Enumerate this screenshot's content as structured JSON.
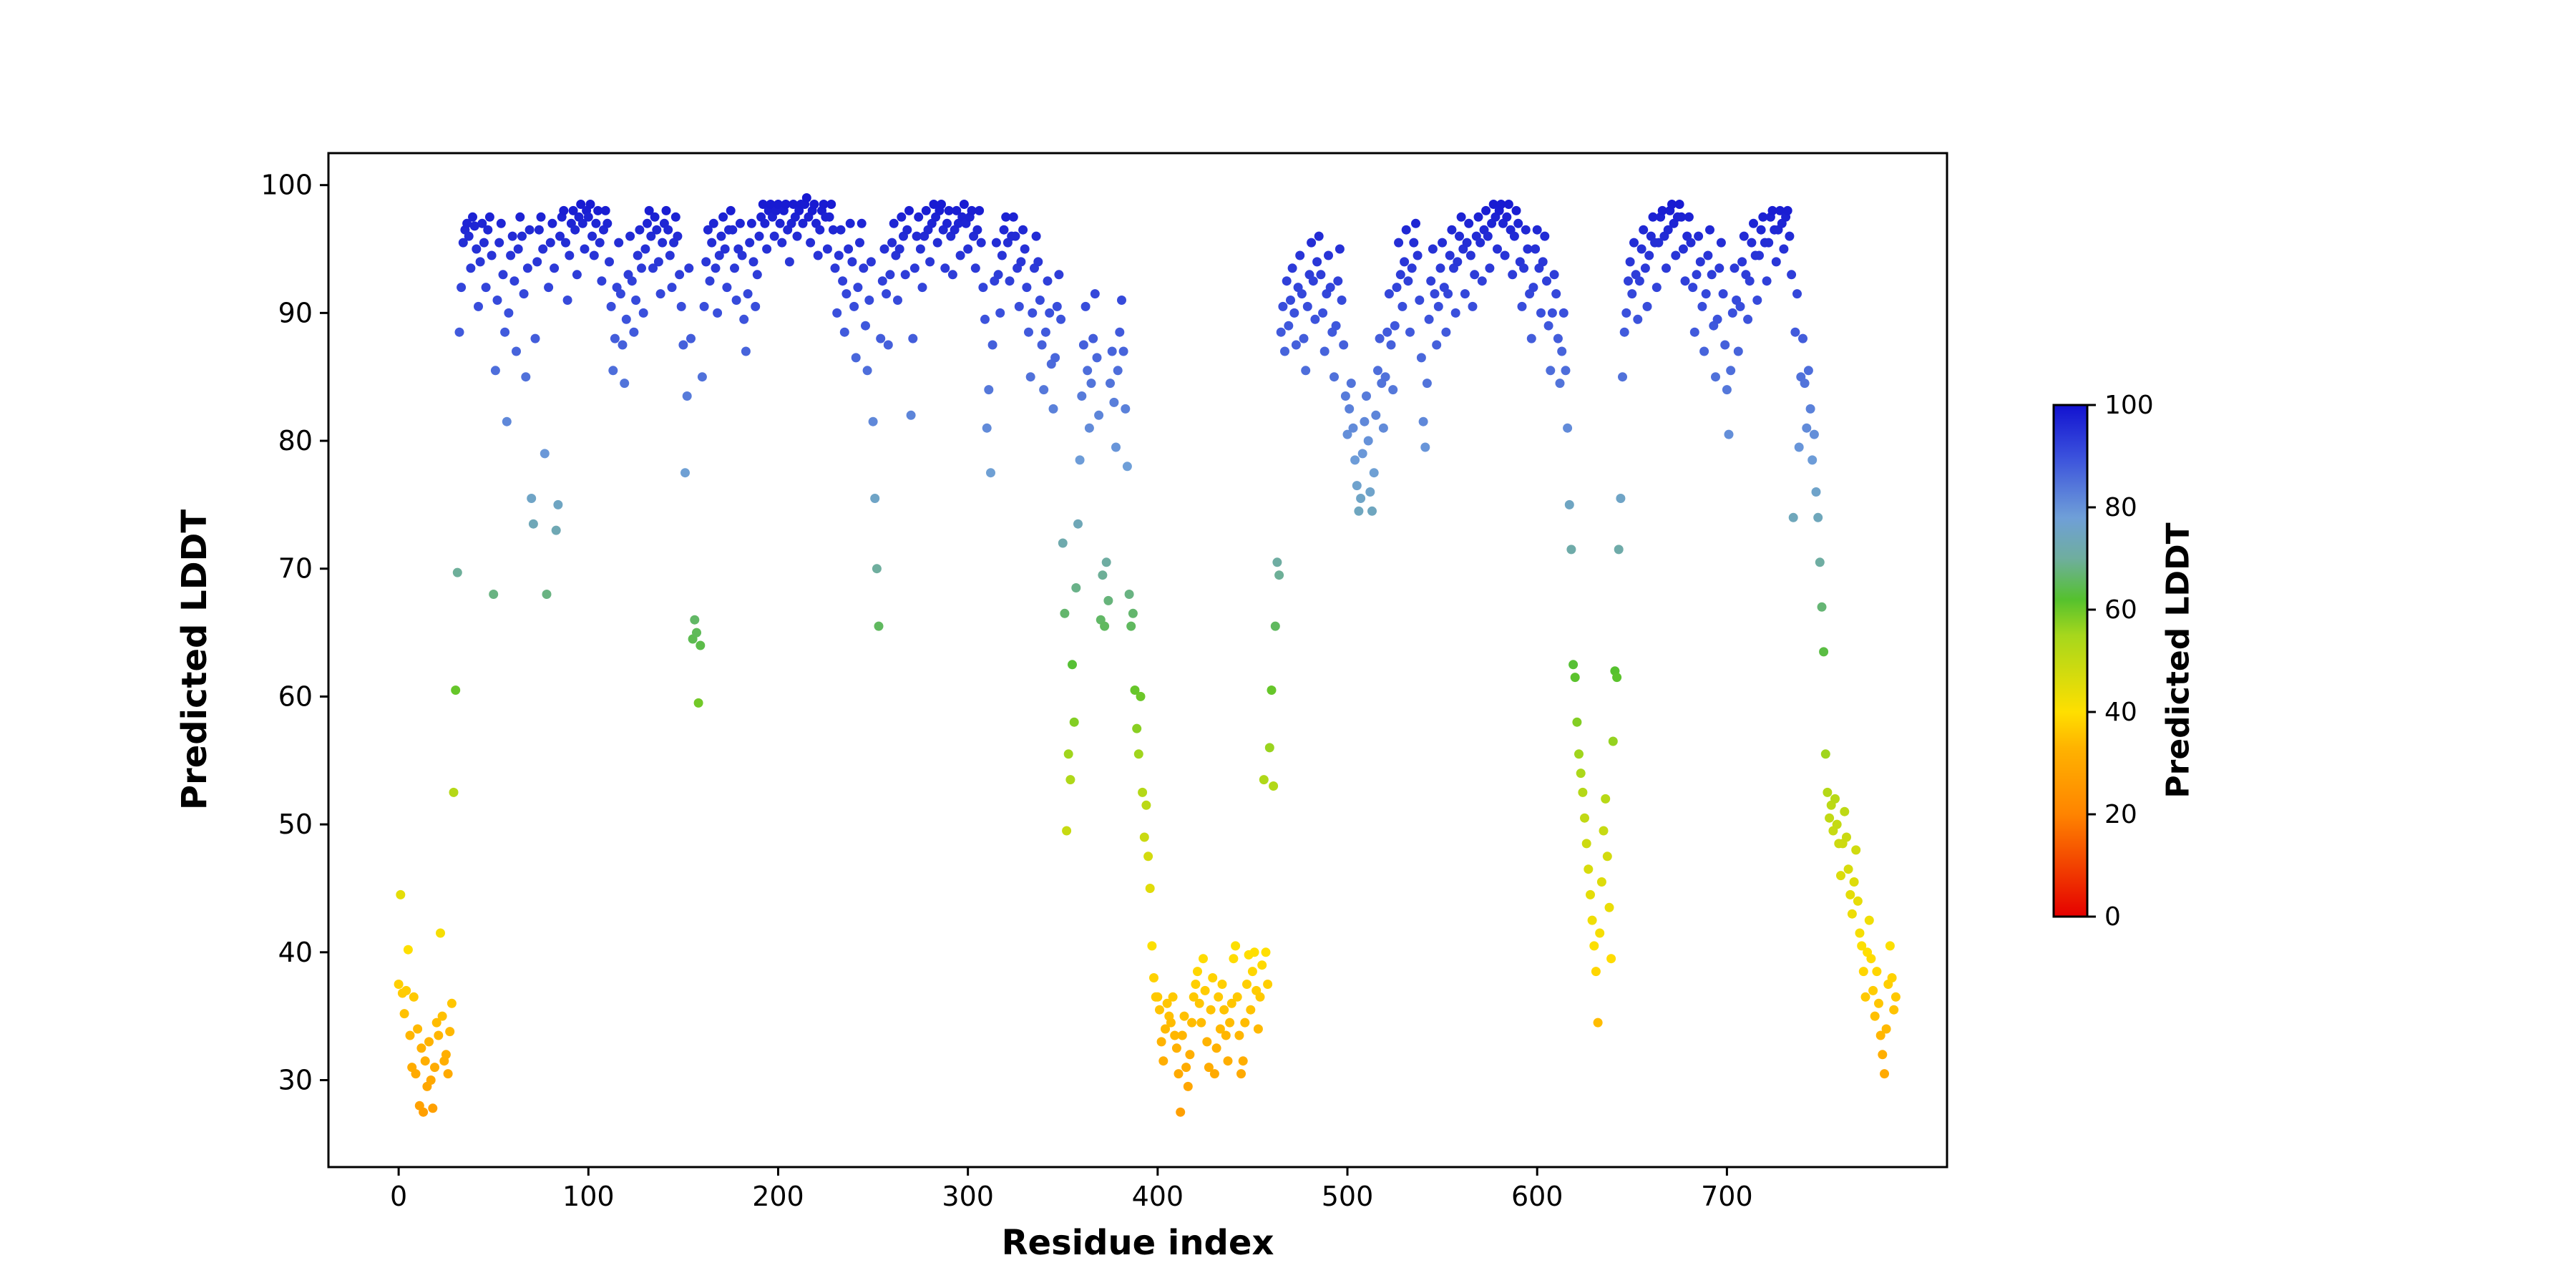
{
  "figure": {
    "background": "#ffffff",
    "axes": {
      "xlabel": "Residue index",
      "ylabel": "Predicted LDDT",
      "spine_color": "#000000",
      "tick_color": "#000000"
    },
    "colorbar": {
      "label": "Predicted LDDT",
      "ticks": [
        0,
        20,
        40,
        60,
        80,
        100
      ],
      "vmin": 0,
      "vmax": 100
    }
  },
  "chart_data": {
    "type": "scatter",
    "title": "",
    "xlabel": "Residue index",
    "ylabel": "Predicted LDDT",
    "xlim": [
      -37,
      816
    ],
    "ylim": [
      23.2,
      102.5
    ],
    "xticks": [
      0,
      100,
      200,
      300,
      400,
      500,
      600,
      700
    ],
    "yticks": [
      30,
      40,
      50,
      60,
      70,
      80,
      90,
      100
    ],
    "grid": false,
    "legend": false,
    "marker_size": 6.5,
    "color_by": "y",
    "color_vmin": 0,
    "color_vmax": 100,
    "colormap_stops": [
      [
        0.0,
        "#e50000"
      ],
      [
        0.2,
        "#ff8400"
      ],
      [
        0.33,
        "#ffb300"
      ],
      [
        0.4,
        "#ffdf00"
      ],
      [
        0.55,
        "#a6d71c"
      ],
      [
        0.62,
        "#55c12e"
      ],
      [
        0.7,
        "#6fae9e"
      ],
      [
        0.78,
        "#6f9fd8"
      ],
      [
        0.9,
        "#3a50dc"
      ],
      [
        1.0,
        "#1212d0"
      ]
    ],
    "x_start": 0,
    "x_step": 1,
    "y": [
      37.5,
      44.5,
      36.8,
      35.2,
      37,
      40.2,
      33.5,
      31,
      36.5,
      30.5,
      34,
      28,
      32.5,
      27.5,
      31.5,
      29.5,
      33,
      30,
      27.8,
      31,
      34.5,
      33.5,
      41.5,
      35,
      31.5,
      32,
      30.5,
      33.8,
      36,
      52.5,
      60.5,
      69.7,
      88.5,
      92,
      95.5,
      96.5,
      97,
      96,
      93.5,
      97.5,
      96.8,
      95,
      90.5,
      94,
      97,
      95.5,
      92,
      96.5,
      97.5,
      94.5,
      68,
      85.5,
      91,
      95.5,
      97,
      93,
      88.5,
      81.5,
      90,
      94.5,
      96,
      92.5,
      87,
      95,
      97.5,
      96,
      91.5,
      85,
      93.5,
      96.5,
      75.5,
      73.5,
      88,
      94,
      96.5,
      97.5,
      95,
      79,
      68,
      92,
      95.5,
      97,
      93.5,
      73,
      75,
      96,
      97.5,
      98,
      95.5,
      91,
      94.5,
      97,
      98,
      96.5,
      93,
      97.5,
      98.5,
      97,
      95,
      98,
      97.5,
      98.5,
      96,
      94.5,
      97,
      98,
      95.5,
      92.5,
      96.5,
      98,
      97,
      94,
      90.5,
      85.5,
      88,
      92,
      95.5,
      91.5,
      87.5,
      84.5,
      89.5,
      93,
      96,
      92.5,
      88.5,
      91,
      94.5,
      96.5,
      93.5,
      90,
      95,
      97,
      98,
      96,
      93.5,
      97.5,
      96.5,
      94,
      91.5,
      95.5,
      97,
      98,
      96.5,
      94.5,
      92,
      95.5,
      97.5,
      96,
      93,
      90.5,
      87.5,
      77.5,
      83.5,
      93.5,
      88,
      64.5,
      66,
      65,
      59.5,
      64,
      85,
      90.5,
      94,
      96.5,
      92.5,
      95.5,
      97,
      93.5,
      90,
      94.5,
      96,
      97.5,
      95,
      92,
      96.5,
      98,
      96.5,
      93.5,
      91,
      95,
      97,
      94.5,
      89.5,
      87,
      91.5,
      95.5,
      97,
      94,
      90.5,
      93,
      96,
      97.5,
      98.5,
      97,
      95,
      98,
      98.5,
      97.5,
      96,
      98,
      98.5,
      97,
      95.5,
      98,
      98.5,
      96.5,
      94,
      97,
      98.5,
      97.5,
      96,
      98,
      98.5,
      97,
      98.5,
      99,
      97.5,
      95.5,
      98,
      98.5,
      97,
      94.5,
      96.5,
      98,
      98.5,
      97.5,
      95,
      97.5,
      98.5,
      96.5,
      93.5,
      90,
      94.5,
      96.5,
      92.5,
      88.5,
      91.5,
      95,
      97,
      94,
      90.5,
      86.5,
      92,
      95.5,
      97,
      93.5,
      89,
      85.5,
      91,
      94,
      81.5,
      75.5,
      70,
      65.5,
      88,
      92.5,
      95,
      91.5,
      87.5,
      93,
      95.5,
      97,
      94.5,
      91,
      95,
      97.5,
      96,
      93,
      96.5,
      98,
      82,
      88,
      93.5,
      96,
      97.5,
      95,
      92,
      96,
      98,
      96.5,
      94,
      97,
      98.5,
      97.5,
      95.5,
      98,
      98.5,
      96.5,
      93.5,
      97,
      98,
      96,
      93,
      96.5,
      98,
      97,
      94.5,
      97.5,
      98.5,
      97,
      95,
      97.5,
      98,
      96,
      93.5,
      96.5,
      98,
      95.5,
      92,
      89.5,
      81,
      84,
      77.5,
      87.5,
      92.5,
      95.5,
      93,
      90,
      94.5,
      96.5,
      97.5,
      95.5,
      92.5,
      96,
      97.5,
      96,
      93.5,
      90.5,
      94,
      96.5,
      95,
      92,
      88.5,
      85,
      90,
      93.5,
      96,
      94,
      91,
      87.5,
      84,
      88.5,
      92.5,
      90,
      86,
      82.5,
      86.5,
      90.5,
      93,
      89.5,
      72,
      66.5,
      49.5,
      55.5,
      53.5,
      62.5,
      58,
      68.5,
      73.5,
      78.5,
      83.5,
      87.5,
      90.5,
      85.5,
      81,
      84.5,
      88,
      91.5,
      86.5,
      82,
      66,
      69.5,
      65.5,
      70.5,
      67.5,
      84.5,
      87,
      83,
      79.5,
      85.5,
      88.5,
      91,
      87,
      82.5,
      78,
      68,
      65.5,
      66.5,
      60.5,
      57.5,
      55.5,
      60,
      52.5,
      49,
      51.5,
      47.5,
      45,
      40.5,
      38,
      36.5,
      36.5,
      35.5,
      33,
      31.5,
      34,
      36,
      35,
      34.5,
      36.5,
      33.5,
      32.5,
      30.5,
      27.5,
      33.5,
      35,
      31,
      29.5,
      32,
      34.5,
      36.5,
      37.5,
      38.5,
      36,
      34.5,
      39.5,
      37,
      33,
      31,
      35.5,
      38,
      30.5,
      32.5,
      36.5,
      34,
      37.5,
      35.5,
      33.5,
      31.5,
      34.5,
      36,
      39.5,
      40.5,
      36.5,
      33.5,
      30.5,
      31.5,
      34.5,
      37.5,
      39.8,
      35.5,
      38.5,
      40,
      37,
      34,
      36.5,
      39,
      53.5,
      40,
      37.5,
      56,
      60.5,
      53,
      65.5,
      70.5,
      69.5,
      88.5,
      90.5,
      87,
      92.5,
      89,
      91,
      93.5,
      90,
      87.5,
      92,
      94.5,
      91.5,
      88,
      85.5,
      90.5,
      93,
      95.5,
      92.5,
      89.5,
      94,
      96,
      93,
      90,
      87,
      91.5,
      94.5,
      92,
      88.5,
      85,
      89,
      92.5,
      95,
      91,
      87.5,
      83.5,
      80.5,
      82.5,
      84.5,
      81,
      78.5,
      76.5,
      74.5,
      75.5,
      79,
      81.5,
      83.5,
      80,
      76,
      74.5,
      77.5,
      82,
      85.5,
      88,
      84.5,
      81,
      85,
      88.5,
      91.5,
      87.5,
      84,
      89,
      92,
      95.5,
      93,
      90.5,
      94,
      96.5,
      92.5,
      88.5,
      93.5,
      95.5,
      97,
      94.5,
      91,
      86.5,
      81.5,
      79.5,
      84.5,
      89.5,
      92.5,
      95,
      91.5,
      87.5,
      90.5,
      93.5,
      95.5,
      92,
      88.5,
      91.5,
      94.5,
      96.5,
      93.5,
      90,
      94,
      96,
      97.5,
      95,
      91.5,
      95.5,
      97,
      94.5,
      90.5,
      93,
      96,
      97.5,
      95.5,
      92.5,
      96.5,
      98,
      96,
      93.5,
      97,
      98.5,
      97.5,
      95,
      98,
      98.5,
      97,
      94.5,
      97.5,
      98.5,
      96.5,
      93,
      96,
      98,
      97,
      94,
      90.5,
      93.5,
      96.5,
      95,
      91.5,
      88,
      92,
      95,
      96.5,
      93.5,
      90,
      94,
      96,
      92.5,
      89,
      85.5,
      90,
      93,
      91.5,
      88,
      84.5,
      87,
      90,
      85.5,
      81,
      75,
      71.5,
      62.5,
      61.5,
      58,
      55.5,
      54,
      52.5,
      50.5,
      48.5,
      46.5,
      44.5,
      42.5,
      40.5,
      38.5,
      34.5,
      41.5,
      45.5,
      49.5,
      52,
      47.5,
      43.5,
      39.5,
      56.5,
      62,
      61.5,
      71.5,
      75.5,
      85,
      88.5,
      90,
      92.5,
      94,
      91.5,
      95.5,
      93,
      89.5,
      92.5,
      95,
      96.5,
      93.5,
      90.5,
      94.5,
      96,
      97.5,
      95.5,
      92,
      95.5,
      97.5,
      98,
      96,
      93.5,
      96.5,
      98,
      98.5,
      97,
      94.5,
      97.5,
      98.5,
      97.5,
      95,
      92.5,
      96,
      97.5,
      95.5,
      92,
      88.5,
      93,
      96,
      94,
      90.5,
      87,
      91.5,
      94.5,
      96.5,
      93,
      89,
      85,
      89.5,
      93.5,
      95.5,
      91.5,
      87.5,
      84,
      80.5,
      85.5,
      90,
      93.5,
      91,
      87,
      90.5,
      94,
      96,
      93,
      89.5,
      92.5,
      95.5,
      97,
      94.5,
      91,
      94.5,
      96.5,
      97.5,
      95.5,
      92.5,
      95.5,
      97.5,
      98,
      96.5,
      94,
      96.5,
      98,
      97,
      95,
      97.5,
      98,
      96,
      93,
      74,
      88.5,
      91.5,
      79.5,
      85,
      88,
      84.5,
      81,
      85.5,
      82.5,
      78.5,
      80.5,
      76,
      74,
      70.5,
      67,
      63.5,
      55.5,
      52.5,
      50.5,
      51.5,
      49.5,
      52,
      50,
      48.5,
      46,
      48.5,
      51,
      49,
      46.5,
      44.5,
      43,
      45.5,
      48,
      44,
      41.5,
      40.5,
      38.5,
      36.5,
      40,
      42.5,
      39.5,
      37,
      35,
      38.5,
      36,
      33.5,
      32,
      30.5,
      34,
      37.5,
      40.5,
      38,
      35.5,
      36.5
    ]
  }
}
